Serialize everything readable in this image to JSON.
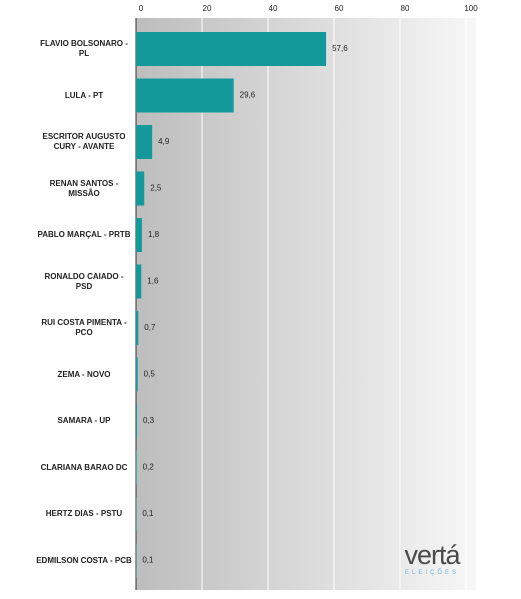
{
  "chart_data": {
    "type": "bar",
    "orientation": "horizontal",
    "categories": [
      "FLAVIO BOLSONARO - PL",
      "LULA - PT",
      "ESCRITOR AUGUSTO CURY - AVANTE",
      "RENAN SANTOS - MISSÃO",
      "PABLO MARÇAL - PRTB",
      "RONALDO CAIADO - PSD",
      "RUI COSTA PIMENTA - PCO",
      "ZEMA - NOVO",
      "SAMARA - UP",
      "CLARIANA BARAO DC",
      "HERTZ DIAS - PSTU",
      "EDMILSON COSTA - PCB"
    ],
    "values": [
      57.6,
      29.6,
      4.9,
      2.5,
      1.8,
      1.6,
      0.7,
      0.5,
      0.3,
      0.2,
      0.1,
      0.1
    ],
    "value_labels": [
      "57,6",
      "29,6",
      "4,9",
      "2,5",
      "1,8",
      "1,6",
      "0,7",
      "0,5",
      "0,3",
      "0,2",
      "0,1",
      "0,1"
    ],
    "color": "#14999b",
    "xlim": [
      0,
      100
    ],
    "xticks": [
      0,
      20,
      40,
      60,
      80,
      100
    ],
    "grid": true
  },
  "logo": {
    "name": "vertá",
    "tagline": "ELEIÇÕES"
  }
}
